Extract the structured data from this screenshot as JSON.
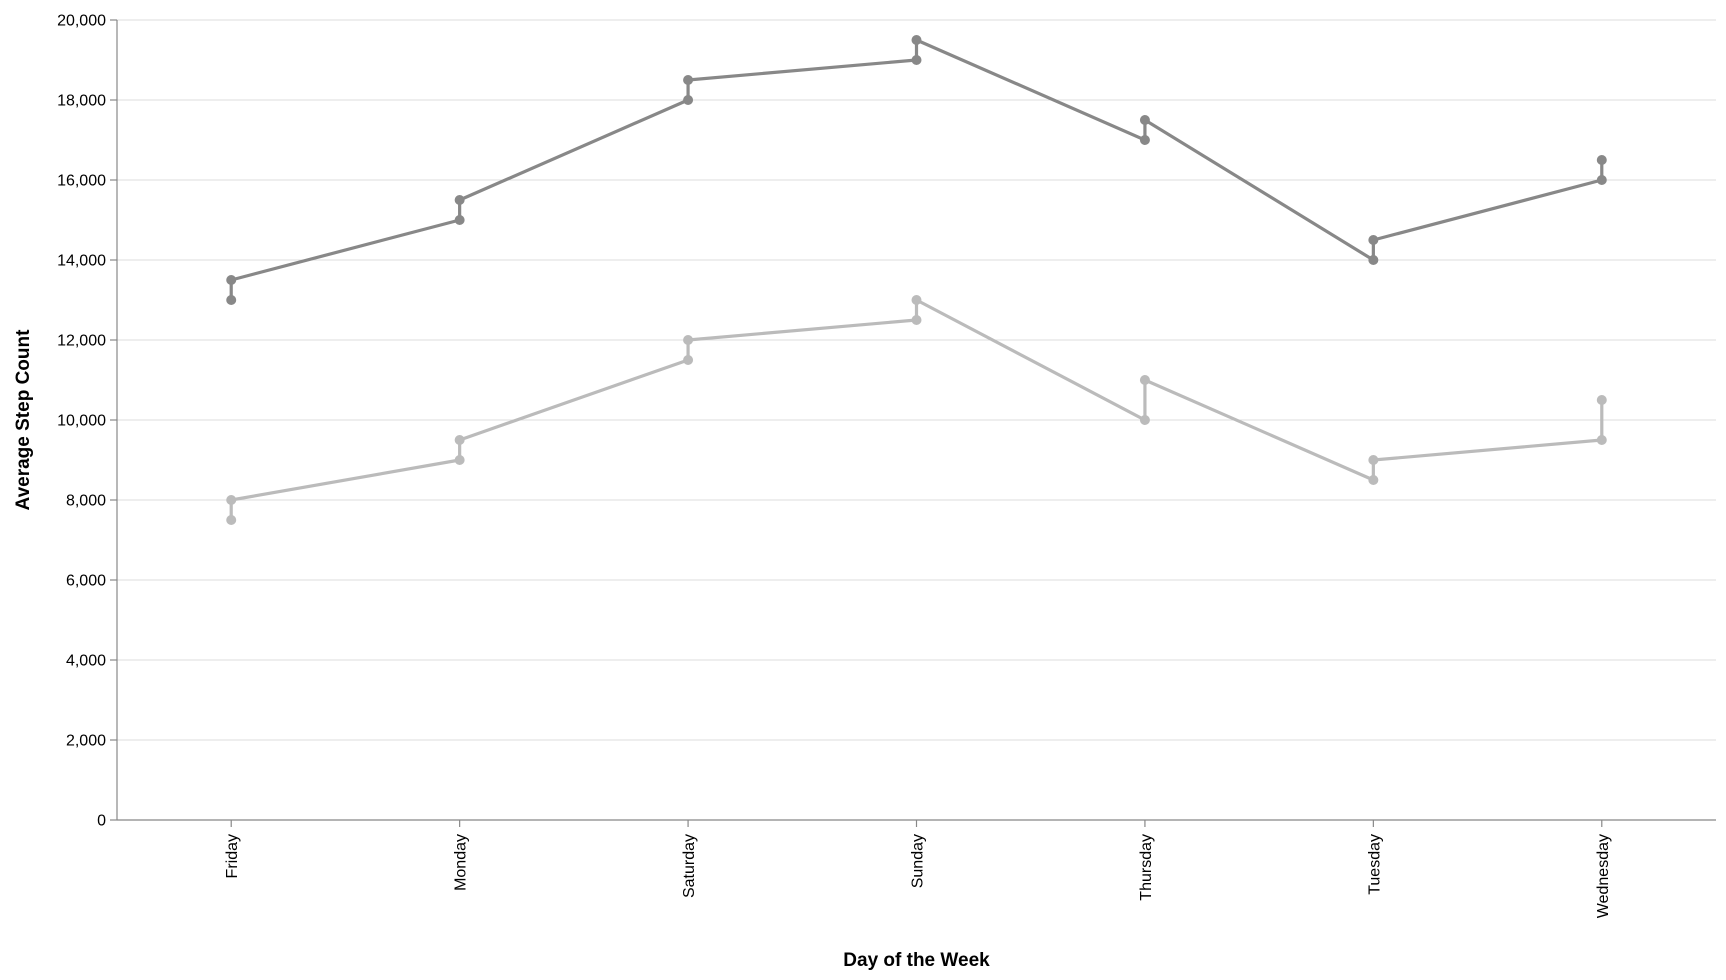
{
  "chart_data": {
    "type": "line",
    "title": "",
    "xlabel": "Day of the Week",
    "ylabel": "Average Step Count",
    "categories": [
      "Friday",
      "Monday",
      "Saturday",
      "Sunday",
      "Thursday",
      "Tuesday",
      "Wednesday"
    ],
    "ylim": [
      0,
      20000
    ],
    "yticks": [
      0,
      2000,
      4000,
      6000,
      8000,
      10000,
      12000,
      14000,
      16000,
      18000,
      20000
    ],
    "ytick_labels": [
      "0",
      "2,000",
      "4,000",
      "6,000",
      "8,000",
      "10,000",
      "12,000",
      "14,000",
      "16,000",
      "18,000",
      "20,000"
    ],
    "grid": true,
    "legend": "none",
    "series": [
      {
        "color": "#888888",
        "lower": [
          13000,
          15000,
          18000,
          19000,
          17000,
          14000,
          16000
        ],
        "upper": [
          13500,
          15500,
          18500,
          19500,
          17500,
          14500,
          16500
        ]
      },
      {
        "color": "#bbbbbb",
        "lower": [
          7500,
          9000,
          11500,
          12500,
          10000,
          8500,
          9500
        ],
        "upper": [
          8000,
          9500,
          12000,
          13000,
          11000,
          9000,
          10500
        ]
      }
    ]
  }
}
